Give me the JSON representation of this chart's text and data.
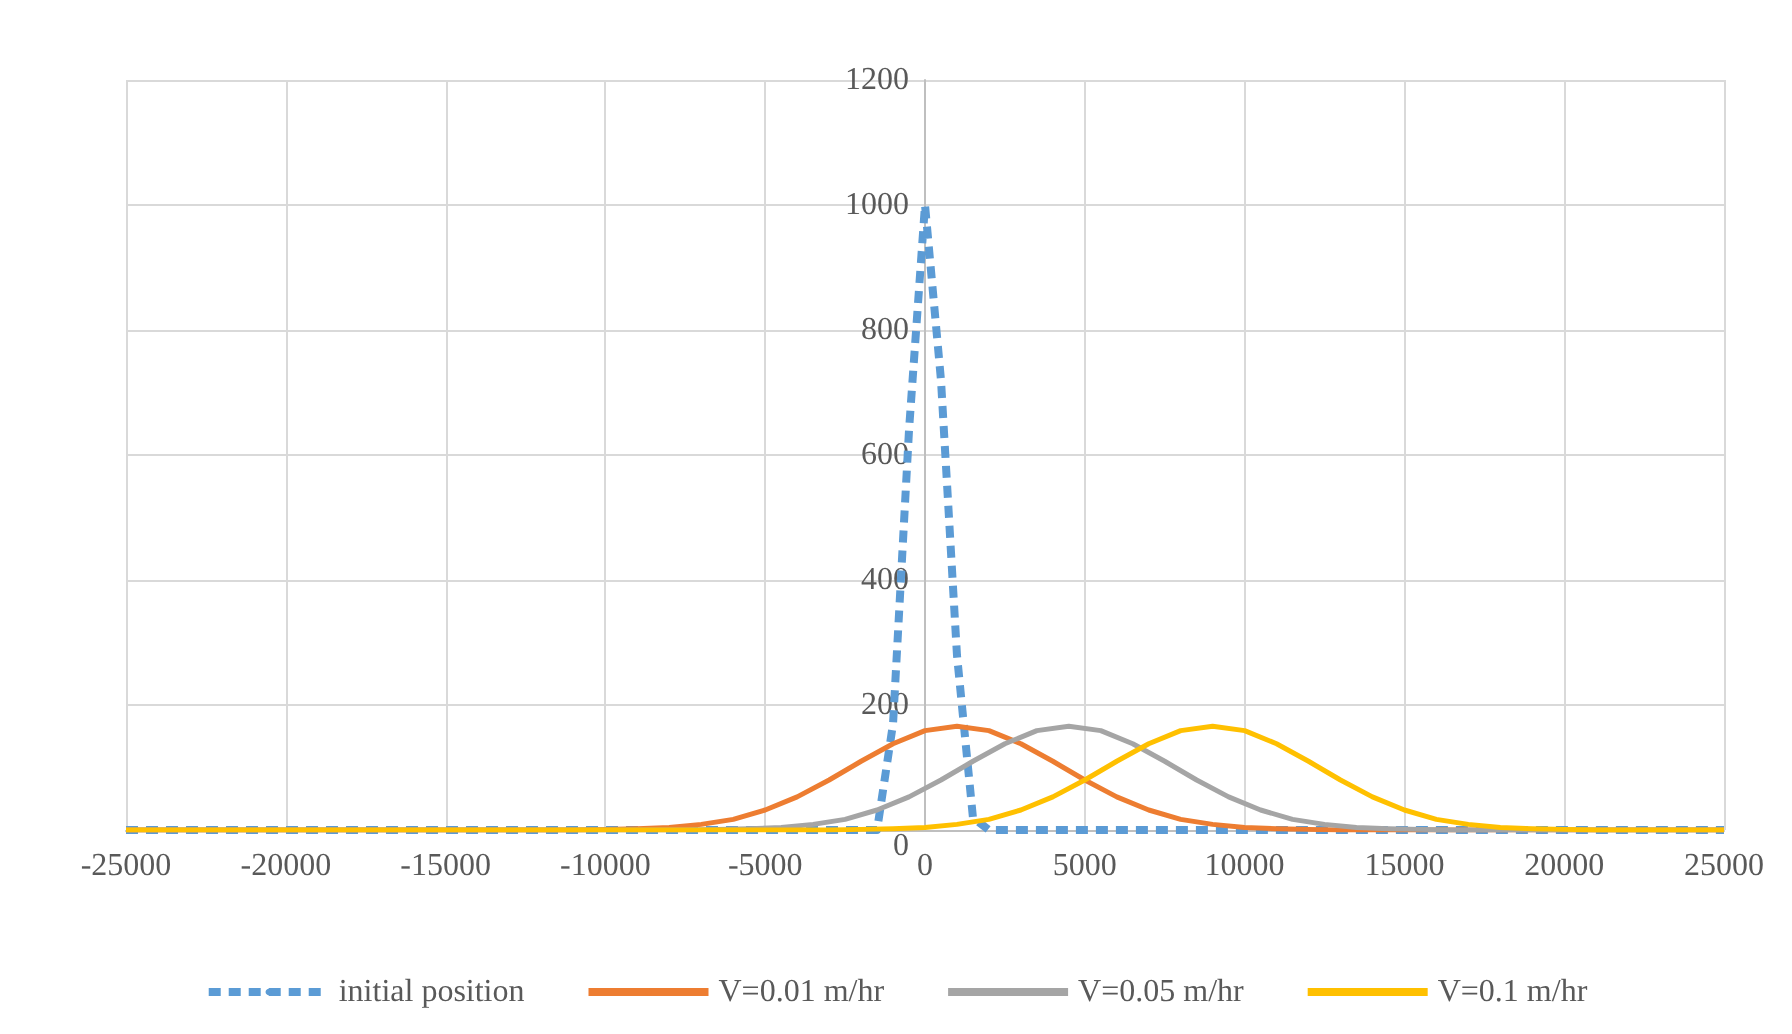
{
  "chart_data": {
    "type": "line",
    "xlim": [
      -25000,
      25000
    ],
    "xticks": [
      -25000,
      -20000,
      -15000,
      -10000,
      -5000,
      0,
      5000,
      10000,
      15000,
      20000,
      25000
    ],
    "ylim": [
      0,
      1200
    ],
    "yticks": [
      0,
      200,
      400,
      600,
      800,
      1000,
      1200
    ],
    "grid": true,
    "legend": "bottom",
    "marker": "none",
    "series": [
      {
        "name": "initial position",
        "color": "#5b9bd5",
        "line_style": "dashed",
        "x": [
          -25000,
          -1500,
          -1000,
          -500,
          0,
          500,
          1000,
          1500,
          2000,
          25000
        ],
        "values": [
          0,
          0,
          170,
          640,
          1000,
          720,
          280,
          20,
          0,
          0
        ]
      },
      {
        "name": "V=0.01 m/hr",
        "color": "#ed7d31",
        "line_style": "solid",
        "x": [
          -25000,
          -11000,
          -10000,
          -9000,
          -8000,
          -7000,
          -6000,
          -5000,
          -4000,
          -3000,
          -2000,
          -1000,
          0,
          1000,
          2000,
          3000,
          4000,
          5000,
          6000,
          7000,
          8000,
          9000,
          10000,
          11000,
          12000,
          13000,
          25000
        ],
        "values": [
          0,
          0,
          1,
          2,
          4,
          9,
          17,
          32,
          53,
          80,
          110,
          138,
          159,
          166,
          159,
          138,
          110,
          80,
          53,
          32,
          17,
          9,
          4,
          2,
          1,
          0,
          0
        ]
      },
      {
        "name": "V=0.05 m/hr",
        "color": "#a5a5a5",
        "line_style": "solid",
        "x": [
          -25000,
          -7500,
          -6500,
          -5500,
          -4500,
          -3500,
          -2500,
          -1500,
          -500,
          500,
          1500,
          2500,
          3500,
          4500,
          5500,
          6500,
          7500,
          8500,
          9500,
          10500,
          11500,
          12500,
          13500,
          14500,
          15500,
          16500,
          25000
        ],
        "values": [
          0,
          0,
          1,
          2,
          4,
          9,
          17,
          32,
          53,
          80,
          110,
          138,
          159,
          166,
          159,
          138,
          110,
          80,
          53,
          32,
          17,
          9,
          4,
          2,
          1,
          0,
          0
        ]
      },
      {
        "name": "V=0.1 m/hr",
        "color": "#ffc000",
        "line_style": "solid",
        "x": [
          -25000,
          -3000,
          -2000,
          -1000,
          0,
          1000,
          2000,
          3000,
          4000,
          5000,
          6000,
          7000,
          8000,
          9000,
          10000,
          11000,
          12000,
          13000,
          14000,
          15000,
          16000,
          17000,
          18000,
          19000,
          20000,
          21000,
          25000
        ],
        "values": [
          0,
          0,
          1,
          2,
          4,
          9,
          17,
          32,
          53,
          80,
          110,
          138,
          159,
          166,
          159,
          138,
          110,
          80,
          53,
          32,
          17,
          9,
          4,
          2,
          1,
          0,
          0
        ]
      }
    ]
  }
}
